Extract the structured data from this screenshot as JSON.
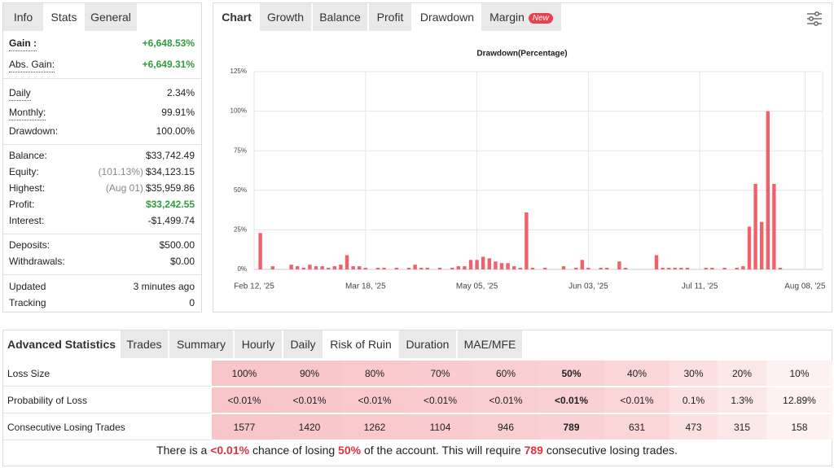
{
  "stats_panel": {
    "tabs": [
      "Info",
      "Stats",
      "General"
    ],
    "active_tab": 1,
    "groups": [
      [
        {
          "label": "Gain :",
          "value": "+6,648.53%",
          "color": "#2e9e3f",
          "bold": true,
          "underline": true
        },
        {
          "label": "Abs. Gain:",
          "value": "+6,649.31%",
          "color": "#2e9e3f",
          "underline": true
        }
      ],
      [
        {
          "label": "Daily",
          "value": "2.34%",
          "underline": true
        },
        {
          "label": "Monthly:",
          "value": "99.91%",
          "underline": true
        },
        {
          "label": "Drawdown:",
          "value": "100.00%"
        }
      ],
      [
        {
          "label": "Balance:",
          "value": "$33,742.49"
        },
        {
          "label": "Equity:",
          "note": "(101.13%)",
          "value": "$34,123.15"
        },
        {
          "label": "Highest:",
          "note": "(Aug 01)",
          "value": "$35,959.86"
        },
        {
          "label": "Profit:",
          "value": "$33,242.55",
          "color": "#2e9e3f"
        },
        {
          "label": "Interest:",
          "value": "-$1,499.74"
        }
      ],
      [
        {
          "label": "Deposits:",
          "value": "$500.00"
        },
        {
          "label": "Withdrawals:",
          "value": "$0.00"
        }
      ],
      [
        {
          "label": "Updated",
          "value": "3 minutes ago"
        },
        {
          "label": "Tracking",
          "value": "0"
        }
      ]
    ]
  },
  "chart_panel": {
    "tabs": [
      "Chart",
      "Growth",
      "Balance",
      "Profit",
      "Drawdown",
      "Margin"
    ],
    "active_tab": 4,
    "badge": {
      "tab": 5,
      "text": "New"
    }
  },
  "chart_data": {
    "type": "bar",
    "title": "Drawdown(Percentage)",
    "color": "#f0616b",
    "grid": true,
    "categories": [
      "Feb 12, '25",
      null,
      null,
      null,
      null,
      null,
      null,
      null,
      null,
      null,
      null,
      null,
      null,
      null,
      null,
      null,
      null,
      null,
      "Mar 18, '25",
      null,
      null,
      null,
      null,
      null,
      null,
      null,
      null,
      null,
      null,
      null,
      null,
      null,
      null,
      null,
      null,
      null,
      "May 05, '25",
      null,
      null,
      null,
      null,
      null,
      null,
      null,
      null,
      null,
      null,
      null,
      null,
      null,
      null,
      null,
      null,
      null,
      "Jun 03, '25",
      null,
      null,
      null,
      null,
      null,
      null,
      null,
      null,
      null,
      null,
      null,
      null,
      null,
      null,
      null,
      null,
      null,
      "Jul 11, '25",
      null,
      null,
      null,
      null,
      null,
      null,
      null,
      null,
      null,
      null,
      null,
      null,
      null,
      null,
      null,
      null,
      "Aug 08, '25",
      null
    ],
    "values": [
      null,
      23,
      null,
      2,
      null,
      null,
      3,
      2,
      1,
      3,
      2,
      2,
      1,
      2,
      3,
      9,
      2,
      2,
      1,
      null,
      1,
      1,
      null,
      1,
      null,
      1,
      3,
      1,
      1,
      null,
      1,
      null,
      1,
      2,
      2,
      6,
      6,
      8,
      7,
      5,
      4,
      4,
      2,
      1,
      36,
      1,
      null,
      1,
      null,
      null,
      2,
      null,
      1,
      6,
      1,
      null,
      1,
      1,
      null,
      5,
      1,
      null,
      null,
      null,
      null,
      9,
      1,
      1,
      1,
      1,
      1,
      null,
      null,
      1,
      1,
      null,
      1,
      null,
      1,
      2,
      27,
      54,
      30,
      100,
      54,
      1,
      null,
      null,
      null,
      null,
      null
    ],
    "ylim": [
      0,
      125
    ],
    "yticks": [
      {
        "value": 0,
        "label": "0%"
      },
      {
        "value": 25,
        "label": "25%"
      },
      {
        "value": 50,
        "label": "50%"
      },
      {
        "value": 75,
        "label": "75%"
      },
      {
        "value": 100,
        "label": "100%"
      },
      {
        "value": 125,
        "label": "125%"
      }
    ]
  },
  "advanced": {
    "tabs": [
      "Advanced Statistics",
      "Trades",
      "Summary",
      "Hourly",
      "Daily",
      "Risk of Ruin",
      "Duration",
      "MAE/MFE"
    ],
    "active_tab": 5,
    "table": {
      "highlight_column": 5,
      "rows": [
        {
          "label": "Loss Size",
          "cells": [
            "100%",
            "90%",
            "80%",
            "70%",
            "60%",
            "50%",
            "40%",
            "30%",
            "20%",
            "10%"
          ]
        },
        {
          "label": "Probability of Loss",
          "cells": [
            "<0.01%",
            "<0.01%",
            "<0.01%",
            "<0.01%",
            "<0.01%",
            "<0.01%",
            "<0.01%",
            "0.1%",
            "1.3%",
            "12.89%"
          ]
        },
        {
          "label": "Consecutive Losing Trades",
          "cells": [
            "1577",
            "1420",
            "1262",
            "1104",
            "946",
            "789",
            "631",
            "473",
            "315",
            "158"
          ]
        }
      ]
    },
    "summary": [
      {
        "text": "There is a "
      },
      {
        "text": "<0.01%",
        "highlight": true
      },
      {
        "text": " chance of losing "
      },
      {
        "text": "50%",
        "highlight": true
      },
      {
        "text": " of the account. This will require "
      },
      {
        "text": "789",
        "highlight": true
      },
      {
        "text": " consecutive losing trades."
      }
    ]
  }
}
